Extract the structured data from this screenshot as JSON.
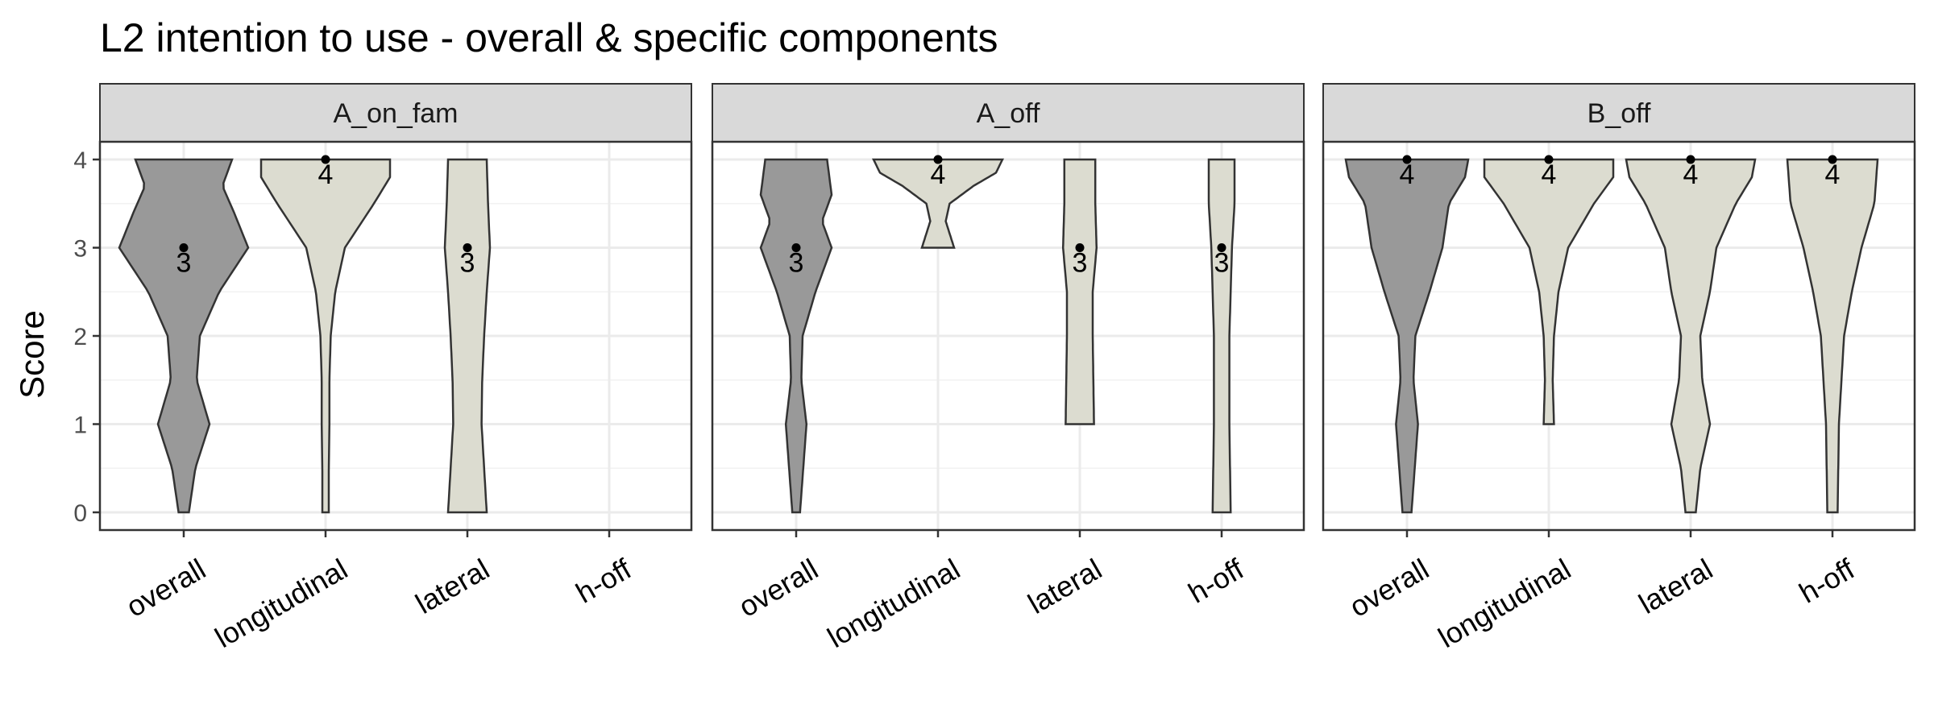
{
  "chart_data": {
    "type": "violin",
    "title": "L2 intention to use - overall & specific components",
    "ylabel": "Score",
    "xlabel": "",
    "ylim": [
      0,
      4
    ],
    "yticks": [
      0,
      1,
      2,
      3,
      4
    ],
    "grid": true,
    "categories": [
      "overall",
      "longitudinal",
      "lateral",
      "h-off"
    ],
    "colors": {
      "overall": "#999999",
      "component": "#dcdcd0",
      "outline": "#333333",
      "strip": "#d9d9d9"
    },
    "panels": [
      {
        "name": "A_on_fam",
        "violins": [
          {
            "category": "overall",
            "median": 3,
            "label": "3",
            "min": 0,
            "max": 4,
            "profile": [
              [
                0,
                0.08
              ],
              [
                0.5,
                0.18
              ],
              [
                1,
                0.4
              ],
              [
                1.5,
                0.2
              ],
              [
                2,
                0.25
              ],
              [
                2.5,
                0.55
              ],
              [
                3,
                1.0
              ],
              [
                3.4,
                0.78
              ],
              [
                3.7,
                0.6
              ],
              [
                4,
                0.75
              ]
            ]
          },
          {
            "category": "longitudinal",
            "median": 4,
            "label": "4",
            "min": 0,
            "max": 4,
            "profile": [
              [
                0,
                0.05
              ],
              [
                0.5,
                0.05
              ],
              [
                1,
                0.06
              ],
              [
                1.5,
                0.06
              ],
              [
                2,
                0.08
              ],
              [
                2.5,
                0.15
              ],
              [
                3,
                0.3
              ],
              [
                3.5,
                0.75
              ],
              [
                3.8,
                1.0
              ],
              [
                4,
                1.0
              ]
            ]
          },
          {
            "category": "lateral",
            "median": 3,
            "label": "3",
            "min": 0,
            "max": 4,
            "profile": [
              [
                0,
                0.3
              ],
              [
                0.5,
                0.26
              ],
              [
                1,
                0.22
              ],
              [
                1.5,
                0.23
              ],
              [
                2,
                0.26
              ],
              [
                2.5,
                0.3
              ],
              [
                3,
                0.35
              ],
              [
                3.5,
                0.32
              ],
              [
                4,
                0.3
              ]
            ]
          }
        ]
      },
      {
        "name": "A_off",
        "violins": [
          {
            "category": "overall",
            "median": 3,
            "label": "3",
            "min": 0,
            "max": 4,
            "profile": [
              [
                0,
                0.06
              ],
              [
                1,
                0.16
              ],
              [
                1.5,
                0.08
              ],
              [
                2,
                0.1
              ],
              [
                2.5,
                0.3
              ],
              [
                3,
                0.55
              ],
              [
                3.3,
                0.4
              ],
              [
                3.6,
                0.55
              ],
              [
                4,
                0.48
              ]
            ]
          },
          {
            "category": "longitudinal",
            "median": 4,
            "label": "4",
            "min": 3,
            "max": 4,
            "profile": [
              [
                3,
                0.25
              ],
              [
                3.3,
                0.12
              ],
              [
                3.5,
                0.18
              ],
              [
                3.7,
                0.55
              ],
              [
                3.85,
                0.9
              ],
              [
                4,
                1.0
              ]
            ]
          },
          {
            "category": "lateral",
            "median": 3,
            "label": "3",
            "min": 1,
            "max": 4,
            "profile": [
              [
                1,
                0.22
              ],
              [
                2,
                0.2
              ],
              [
                2.5,
                0.2
              ],
              [
                3,
                0.26
              ],
              [
                3.5,
                0.24
              ],
              [
                4,
                0.24
              ]
            ]
          },
          {
            "category": "h-off",
            "median": 3,
            "label": "3",
            "min": 0,
            "max": 4,
            "profile": [
              [
                0,
                0.14
              ],
              [
                1,
                0.12
              ],
              [
                2,
                0.12
              ],
              [
                3,
                0.16
              ],
              [
                3.5,
                0.2
              ],
              [
                4,
                0.2
              ]
            ]
          }
        ]
      },
      {
        "name": "B_off",
        "violins": [
          {
            "category": "overall",
            "median": 4,
            "label": "4",
            "min": 0,
            "max": 4,
            "profile": [
              [
                0,
                0.07
              ],
              [
                0.5,
                0.12
              ],
              [
                1,
                0.17
              ],
              [
                1.5,
                0.1
              ],
              [
                2,
                0.13
              ],
              [
                2.5,
                0.35
              ],
              [
                3,
                0.55
              ],
              [
                3.5,
                0.65
              ],
              [
                3.8,
                0.9
              ],
              [
                4,
                0.95
              ]
            ]
          },
          {
            "category": "longitudinal",
            "median": 4,
            "label": "4",
            "min": 1,
            "max": 4,
            "profile": [
              [
                1,
                0.08
              ],
              [
                1.5,
                0.06
              ],
              [
                2,
                0.08
              ],
              [
                2.5,
                0.15
              ],
              [
                3,
                0.3
              ],
              [
                3.5,
                0.7
              ],
              [
                3.8,
                1.0
              ],
              [
                4,
                1.0
              ]
            ]
          },
          {
            "category": "lateral",
            "median": 4,
            "label": "4",
            "min": 0,
            "max": 4,
            "profile": [
              [
                0,
                0.08
              ],
              [
                0.5,
                0.15
              ],
              [
                1,
                0.3
              ],
              [
                1.5,
                0.18
              ],
              [
                2,
                0.15
              ],
              [
                2.5,
                0.3
              ],
              [
                3,
                0.4
              ],
              [
                3.5,
                0.7
              ],
              [
                3.8,
                0.95
              ],
              [
                4,
                1.0
              ]
            ]
          },
          {
            "category": "h-off",
            "median": 4,
            "label": "4",
            "min": 0,
            "max": 4,
            "profile": [
              [
                0,
                0.08
              ],
              [
                1,
                0.1
              ],
              [
                2,
                0.18
              ],
              [
                2.5,
                0.3
              ],
              [
                3,
                0.45
              ],
              [
                3.5,
                0.65
              ],
              [
                4,
                0.7
              ]
            ]
          }
        ]
      }
    ]
  }
}
